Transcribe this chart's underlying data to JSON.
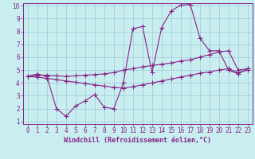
{
  "xlabel": "Windchill (Refroidissement éolien,°C)",
  "background_color": "#c8eef0",
  "grid_color": "#a0c8d8",
  "line_color": "#882288",
  "series1_x": [
    0,
    1,
    2,
    3,
    4,
    5,
    6,
    7,
    8,
    9,
    10,
    11,
    12,
    13,
    14,
    15,
    16,
    17,
    18,
    19,
    20,
    21,
    22,
    23
  ],
  "series1_y": [
    4.5,
    4.7,
    4.5,
    2.0,
    1.4,
    2.2,
    2.6,
    3.1,
    2.1,
    2.0,
    4.0,
    8.2,
    8.4,
    4.8,
    8.3,
    9.6,
    10.05,
    10.1,
    7.5,
    6.5,
    6.5,
    5.0,
    4.7,
    5.1
  ],
  "series2_x": [
    0,
    1,
    2,
    3,
    4,
    5,
    6,
    7,
    8,
    9,
    10,
    11,
    12,
    13,
    14,
    15,
    16,
    17,
    18,
    19,
    20,
    21,
    22,
    23
  ],
  "series2_y": [
    4.5,
    4.6,
    4.6,
    4.55,
    4.5,
    4.55,
    4.6,
    4.65,
    4.7,
    4.8,
    5.0,
    5.1,
    5.25,
    5.35,
    5.45,
    5.55,
    5.7,
    5.8,
    6.0,
    6.2,
    6.4,
    6.5,
    5.0,
    5.1
  ],
  "series3_x": [
    0,
    1,
    2,
    3,
    4,
    5,
    6,
    7,
    8,
    9,
    10,
    11,
    12,
    13,
    14,
    15,
    16,
    17,
    18,
    19,
    20,
    21,
    22,
    23
  ],
  "series3_y": [
    4.5,
    4.45,
    4.35,
    4.25,
    4.15,
    4.05,
    3.95,
    3.85,
    3.75,
    3.65,
    3.6,
    3.7,
    3.85,
    4.0,
    4.15,
    4.3,
    4.45,
    4.6,
    4.75,
    4.85,
    5.0,
    5.1,
    4.8,
    5.0
  ],
  "xlim_min": -0.5,
  "xlim_max": 23.5,
  "ylim_min": 0.8,
  "ylim_max": 10.2,
  "yticks": [
    1,
    2,
    3,
    4,
    5,
    6,
    7,
    8,
    9,
    10
  ],
  "xticks": [
    0,
    1,
    2,
    3,
    4,
    5,
    6,
    7,
    8,
    9,
    10,
    11,
    12,
    13,
    14,
    15,
    16,
    17,
    18,
    19,
    20,
    21,
    22,
    23
  ],
  "marker": "+",
  "marker_size": 4,
  "line_width": 0.8,
  "tick_fontsize": 5.5,
  "xlabel_fontsize": 6.0
}
